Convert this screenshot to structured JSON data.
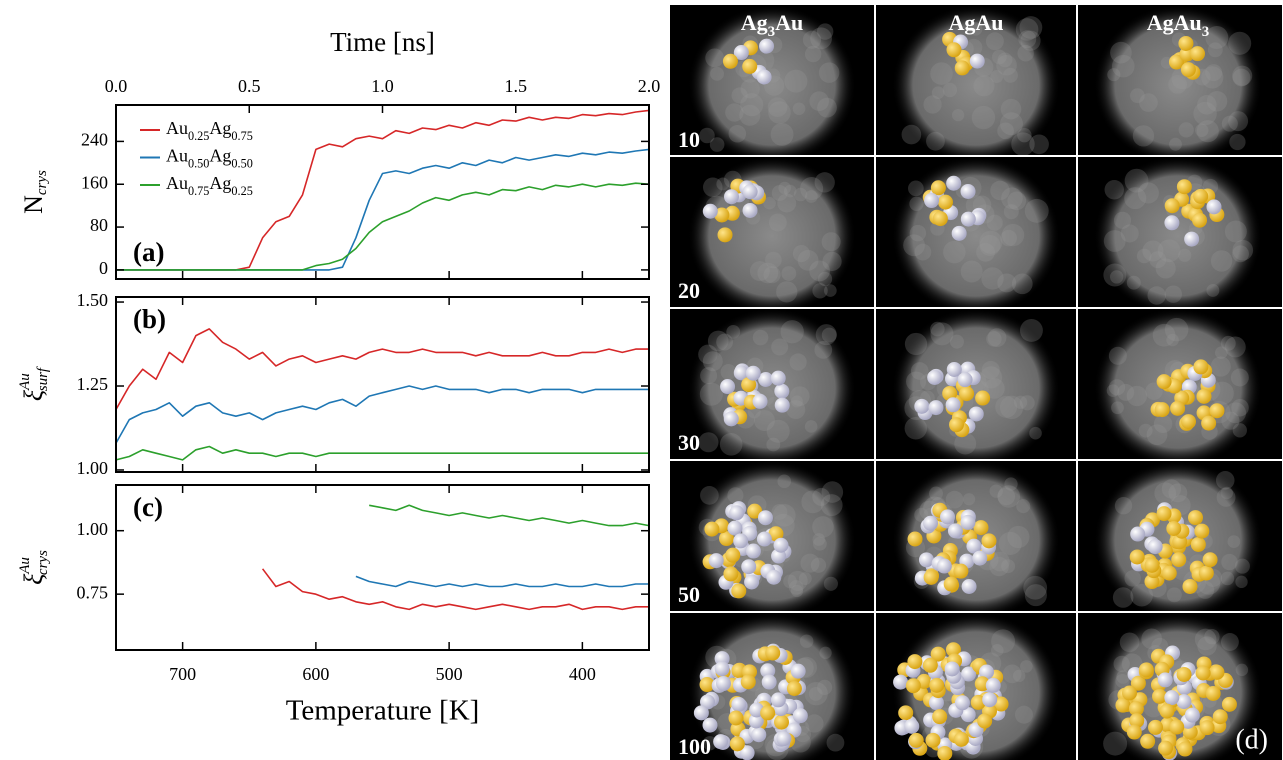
{
  "chart_data": [
    {
      "type": "line",
      "x2label": "Time [ns]",
      "x2lim": [
        0,
        2.0
      ],
      "x2ticks": [
        {
          "value": 0,
          "label": "0.0"
        },
        0.5,
        {
          "value": 1,
          "label": "1.0"
        },
        1.5,
        {
          "value": 2,
          "label": "2.0"
        }
      ],
      "ylabel": {
        "base": "N",
        "sub": "crys"
      },
      "annotation": "(a)",
      "legend": "upper left",
      "xlim": [
        750,
        350
      ],
      "xticks": [
        700,
        600,
        500,
        400
      ],
      "ylim": [
        -17,
        308
      ],
      "yticks": [
        0,
        80,
        160,
        240
      ],
      "x": [
        750,
        740,
        730,
        720,
        710,
        700,
        690,
        680,
        670,
        660,
        650,
        640,
        630,
        620,
        610,
        600,
        590,
        580,
        570,
        560,
        550,
        540,
        530,
        520,
        510,
        500,
        490,
        480,
        470,
        460,
        450,
        440,
        430,
        420,
        410,
        400,
        390,
        380,
        370,
        360,
        350
      ],
      "series": [
        {
          "name": "Au0.25Ag0.75",
          "color": "#d62728",
          "values": [
            0,
            0,
            0,
            0,
            0,
            0,
            0,
            0,
            0,
            0,
            5,
            60,
            90,
            100,
            140,
            225,
            235,
            230,
            245,
            250,
            245,
            260,
            255,
            265,
            262,
            270,
            265,
            275,
            270,
            280,
            278,
            285,
            280,
            285,
            283,
            290,
            288,
            292,
            290,
            295,
            298
          ]
        },
        {
          "name": "Au0.50Ag0.50",
          "color": "#1f77b4",
          "values": [
            0,
            0,
            0,
            0,
            0,
            0,
            0,
            0,
            0,
            0,
            0,
            0,
            0,
            0,
            0,
            0,
            0,
            5,
            60,
            130,
            180,
            185,
            180,
            190,
            195,
            190,
            200,
            195,
            205,
            200,
            210,
            205,
            210,
            215,
            212,
            218,
            215,
            220,
            218,
            222,
            225
          ]
        },
        {
          "name": "Au0.75Ag0.25",
          "color": "#2ca02c",
          "values": [
            0,
            0,
            0,
            0,
            0,
            0,
            0,
            0,
            0,
            0,
            0,
            0,
            0,
            0,
            0,
            8,
            12,
            20,
            40,
            70,
            90,
            100,
            110,
            125,
            135,
            130,
            140,
            145,
            140,
            150,
            148,
            155,
            150,
            158,
            155,
            160,
            155,
            160,
            158,
            162,
            160
          ]
        }
      ]
    },
    {
      "type": "line",
      "ylabel": {
        "base": "ξ",
        "sup": "Au",
        "sub": "surf"
      },
      "annotation": "(b)",
      "xlim": [
        750,
        350
      ],
      "xticks": [
        700,
        600,
        500,
        400
      ],
      "ylim": [
        0.994,
        1.515
      ],
      "yticks": [
        {
          "value": 1,
          "label": "1.00"
        },
        1.25,
        {
          "value": 1.5,
          "label": "1.50"
        }
      ],
      "x": [
        750,
        740,
        730,
        720,
        710,
        700,
        690,
        680,
        670,
        660,
        650,
        640,
        630,
        620,
        610,
        600,
        590,
        580,
        570,
        560,
        550,
        540,
        530,
        520,
        510,
        500,
        490,
        480,
        470,
        460,
        450,
        440,
        430,
        420,
        410,
        400,
        390,
        380,
        370,
        360,
        350
      ],
      "series": [
        {
          "color": "#d62728",
          "values": [
            1.18,
            1.25,
            1.3,
            1.27,
            1.35,
            1.32,
            1.4,
            1.42,
            1.38,
            1.36,
            1.33,
            1.35,
            1.31,
            1.33,
            1.34,
            1.32,
            1.33,
            1.34,
            1.33,
            1.35,
            1.36,
            1.35,
            1.35,
            1.36,
            1.35,
            1.35,
            1.35,
            1.34,
            1.35,
            1.34,
            1.34,
            1.34,
            1.35,
            1.34,
            1.34,
            1.35,
            1.35,
            1.36,
            1.35,
            1.36,
            1.36
          ]
        },
        {
          "color": "#1f77b4",
          "values": [
            1.08,
            1.15,
            1.17,
            1.18,
            1.2,
            1.16,
            1.19,
            1.2,
            1.17,
            1.16,
            1.17,
            1.15,
            1.17,
            1.18,
            1.19,
            1.18,
            1.2,
            1.21,
            1.19,
            1.22,
            1.23,
            1.24,
            1.25,
            1.24,
            1.25,
            1.24,
            1.24,
            1.24,
            1.23,
            1.24,
            1.24,
            1.23,
            1.24,
            1.24,
            1.24,
            1.23,
            1.24,
            1.24,
            1.24,
            1.24,
            1.24
          ]
        },
        {
          "color": "#2ca02c",
          "values": [
            1.03,
            1.04,
            1.06,
            1.05,
            1.04,
            1.03,
            1.06,
            1.07,
            1.05,
            1.06,
            1.05,
            1.05,
            1.04,
            1.05,
            1.05,
            1.04,
            1.05,
            1.05,
            1.05,
            1.05,
            1.05,
            1.05,
            1.05,
            1.05,
            1.05,
            1.05,
            1.05,
            1.05,
            1.05,
            1.05,
            1.05,
            1.05,
            1.05,
            1.05,
            1.05,
            1.05,
            1.05,
            1.05,
            1.05,
            1.05,
            1.05
          ]
        }
      ]
    },
    {
      "type": "line",
      "ylabel": {
        "base": "ξ",
        "sup": "Au",
        "sub": "crys"
      },
      "annotation": "(c)",
      "xlabel": "Temperature [K]",
      "xlim": [
        750,
        350
      ],
      "xticks": [
        700,
        600,
        500,
        400
      ],
      "ylim": [
        0.53,
        1.18
      ],
      "yticks": [
        0.75,
        {
          "value": 1,
          "label": "1.00"
        }
      ],
      "x": [
        750,
        740,
        730,
        720,
        710,
        700,
        690,
        680,
        670,
        660,
        650,
        640,
        630,
        620,
        610,
        600,
        590,
        580,
        570,
        560,
        550,
        540,
        530,
        520,
        510,
        500,
        490,
        480,
        470,
        460,
        450,
        440,
        430,
        420,
        410,
        400,
        390,
        380,
        370,
        360,
        350
      ],
      "series": [
        {
          "color": "#d62728",
          "values": [
            null,
            null,
            null,
            null,
            null,
            null,
            null,
            null,
            null,
            null,
            null,
            0.85,
            0.78,
            0.8,
            0.76,
            0.75,
            0.73,
            0.74,
            0.72,
            0.71,
            0.72,
            0.7,
            0.69,
            0.71,
            0.7,
            0.71,
            0.7,
            0.69,
            0.7,
            0.71,
            0.7,
            0.69,
            0.7,
            0.7,
            0.71,
            0.69,
            0.7,
            0.7,
            0.69,
            0.7,
            0.7
          ]
        },
        {
          "color": "#1f77b4",
          "values": [
            null,
            null,
            null,
            null,
            null,
            null,
            null,
            null,
            null,
            null,
            null,
            null,
            null,
            null,
            null,
            null,
            null,
            null,
            0.82,
            0.8,
            0.79,
            0.78,
            0.8,
            0.79,
            0.78,
            0.79,
            0.78,
            0.79,
            0.78,
            0.78,
            0.79,
            0.78,
            0.78,
            0.79,
            0.78,
            0.78,
            0.79,
            0.78,
            0.78,
            0.79,
            0.79
          ]
        },
        {
          "color": "#2ca02c",
          "values": [
            null,
            null,
            null,
            null,
            null,
            null,
            null,
            null,
            null,
            null,
            null,
            null,
            null,
            null,
            null,
            null,
            null,
            null,
            null,
            1.1,
            1.09,
            1.08,
            1.1,
            1.08,
            1.07,
            1.06,
            1.07,
            1.06,
            1.05,
            1.06,
            1.05,
            1.04,
            1.05,
            1.04,
            1.03,
            1.04,
            1.03,
            1.02,
            1.02,
            1.03,
            1.02
          ]
        }
      ]
    }
  ],
  "panel_d": {
    "label": "(d)",
    "columns": [
      "Ag3Au",
      "AgAu",
      "AgAu3"
    ],
    "rows": [
      "10",
      "20",
      "30",
      "50",
      "100"
    ]
  }
}
